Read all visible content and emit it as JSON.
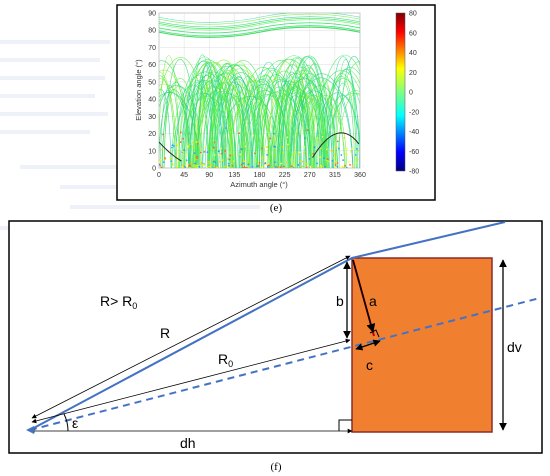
{
  "panel_e": {
    "caption": "(e)",
    "chart_data": {
      "type": "scatter",
      "xlabel": "Azimuth angle (°)",
      "ylabel": "Elevation angle (°)",
      "xlim": [
        0,
        360
      ],
      "ylim": [
        0,
        90
      ],
      "xticks": [
        0,
        45,
        90,
        135,
        180,
        225,
        270,
        315,
        360
      ],
      "yticks": [
        0,
        10,
        20,
        30,
        40,
        50,
        60,
        70,
        80,
        90
      ],
      "colorbar": {
        "range": [
          -80,
          80
        ],
        "ticks": [
          80,
          60,
          40,
          20,
          0,
          -20,
          -40,
          -60,
          -80
        ],
        "colormap": "jet"
      },
      "grid": true
    }
  },
  "panel_f": {
    "caption": "(f)",
    "labels": {
      "condition_main": "R> R",
      "condition_sub": "0",
      "R": "R",
      "R0_main": "R",
      "R0_sub": "0",
      "b": "b",
      "a": "a",
      "c": "c",
      "dv": "dv",
      "dh": "dh",
      "epsilon": "ε"
    },
    "colors": {
      "block_fill": "#f08030",
      "block_border": "#8b2b2b",
      "ray": "#4472c4",
      "a_vector": "#c00000"
    }
  }
}
